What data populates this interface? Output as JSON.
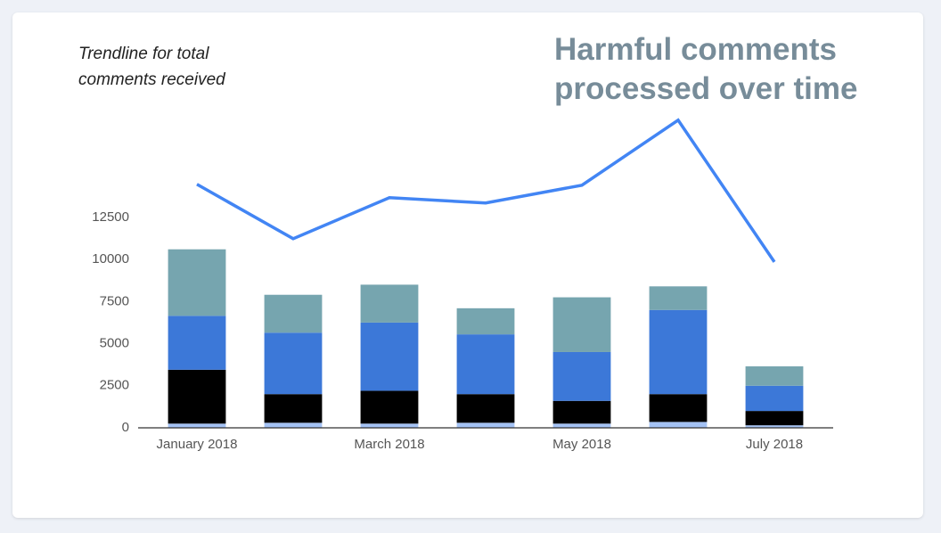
{
  "chart_data": {
    "type": "bar",
    "title": "Harmful comments processed over time",
    "subtitle": "Trendline for total comments received",
    "categories": [
      "January 2018",
      null,
      "March 2018",
      null,
      "May 2018",
      null,
      "July 2018"
    ],
    "series": [
      {
        "color": "#a4c2f4",
        "values": [
          250,
          300,
          250,
          300,
          250,
          350,
          150
        ]
      },
      {
        "color": "#000000",
        "values": [
          3200,
          1700,
          1950,
          1700,
          1350,
          1650,
          850
        ]
      },
      {
        "color": "#3c78d8",
        "values": [
          3200,
          3650,
          4050,
          3550,
          2900,
          5000,
          1500
        ]
      },
      {
        "color": "#76a5af",
        "values": [
          3950,
          2250,
          2250,
          1550,
          3250,
          1400,
          1150
        ]
      }
    ],
    "trendline": {
      "type": "line",
      "color": "#4285f4",
      "values": [
        14460,
        11230,
        13665,
        13350,
        14405,
        18270,
        9850
      ]
    },
    "ylim": [
      0,
      19000
    ],
    "yticks": [
      0,
      2500,
      5000,
      7500,
      10000,
      12500
    ]
  }
}
